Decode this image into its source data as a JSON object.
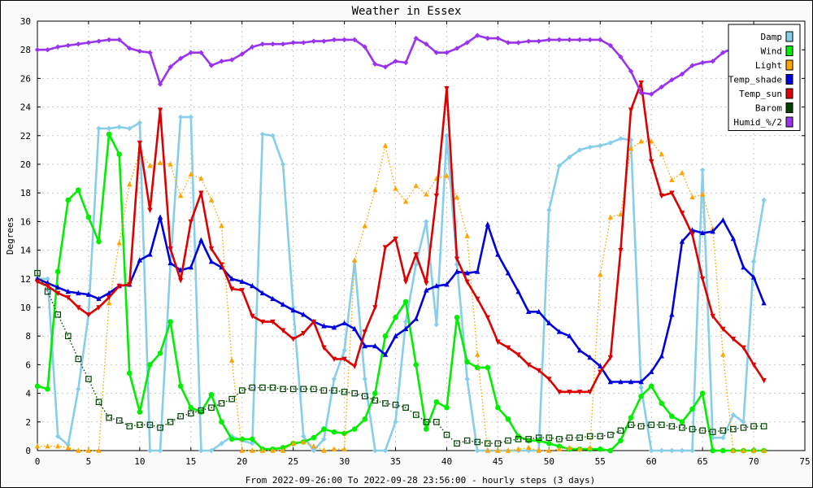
{
  "chart_data": {
    "type": "line",
    "title": "Weather in Essex",
    "xlabel": "From 2022-09-26:00 To 2022-09-28 23:56:00 - hourly steps (3 days)",
    "ylabel": "Degrees",
    "xlim": [
      0,
      75
    ],
    "ylim": [
      0,
      30
    ],
    "xticks": [
      0,
      5,
      10,
      15,
      20,
      25,
      30,
      35,
      40,
      45,
      50,
      55,
      60,
      65,
      70,
      75
    ],
    "yticks": [
      0,
      2,
      4,
      6,
      8,
      10,
      12,
      14,
      16,
      18,
      20,
      22,
      24,
      26,
      28,
      30
    ],
    "grid": true,
    "legend_position": "top-right",
    "series": [
      {
        "name": "Damp",
        "color": "#87ceeb",
        "marker": "diamond",
        "dotted": false,
        "values": [
          12,
          12,
          1,
          0.4,
          4.3,
          9.5,
          22.5,
          22.5,
          22.6,
          22.5,
          22.9,
          0,
          0,
          13,
          23.3,
          23.3,
          0,
          0,
          0.5,
          1,
          0.7,
          0.5,
          22.1,
          22,
          20,
          10,
          1,
          0,
          0.8,
          5,
          7,
          13.2,
          5,
          0,
          0,
          2,
          9,
          13,
          16,
          8.8,
          22,
          13,
          5,
          0,
          0,
          0,
          0,
          0,
          0,
          0,
          16.8,
          19.9,
          20.5,
          21,
          21.2,
          21.3,
          21.5,
          21.8,
          21.7,
          4.4,
          0,
          0,
          0,
          0,
          0,
          19.6,
          0.9,
          0.9,
          2.5,
          2,
          13.2,
          17.5
        ]
      },
      {
        "name": "Wind",
        "color": "#00ee00",
        "marker": "circle",
        "dotted": false,
        "values": [
          4.5,
          4.3,
          12.5,
          17.5,
          18.2,
          16.3,
          14.6,
          22.1,
          20.7,
          5.4,
          2.7,
          6,
          6.8,
          9,
          4.5,
          3,
          2.7,
          3.9,
          2,
          0.8,
          0.8,
          0.8,
          0.1,
          0.1,
          0.2,
          0.5,
          0.6,
          0.9,
          1.5,
          1.3,
          1.2,
          1.5,
          2.2,
          4,
          8,
          9.3,
          10.4,
          6,
          1.5,
          3.4,
          3,
          9.3,
          6.2,
          5.8,
          5.8,
          3,
          2.2,
          1,
          0.7,
          0.7,
          0.5,
          0.3,
          0.1,
          0.1,
          0.1,
          0.1,
          0,
          0.7,
          2.3,
          3.8,
          4.5,
          3.3,
          2.4,
          2,
          2.9,
          4,
          0,
          0,
          0,
          0,
          0,
          0
        ]
      },
      {
        "name": "Light",
        "color": "#ffa500",
        "marker": "triangle",
        "dotted": true,
        "values": [
          0.3,
          0.3,
          0.3,
          0.2,
          0,
          0,
          0,
          10.3,
          14.5,
          18.6,
          20.9,
          19.9,
          20.1,
          20,
          17.8,
          19.3,
          19,
          17.5,
          15.7,
          6.3,
          0,
          0,
          0,
          0,
          0,
          0.5,
          0.6,
          0.3,
          0,
          0.1,
          0.1,
          13.3,
          15.7,
          18.2,
          21.3,
          18.3,
          17.4,
          18.5,
          17.9,
          19,
          19.2,
          17.7,
          15,
          6.7,
          0,
          0,
          0,
          0.1,
          0.2,
          0,
          0,
          0.1,
          0.2,
          0.1,
          0.2,
          12.3,
          16.3,
          16.5,
          21.1,
          21.6,
          21.6,
          20.7,
          18.9,
          19.4,
          17.7,
          17.9,
          15.5,
          6.7,
          0,
          0,
          0,
          0
        ]
      },
      {
        "name": "Temp_shade",
        "color": "#0000dd",
        "marker": "triangle",
        "dotted": false,
        "values": [
          12,
          11.7,
          11.4,
          11.1,
          11,
          10.9,
          10.6,
          11,
          11.5,
          11.6,
          13.3,
          13.7,
          16.3,
          13.1,
          12.6,
          12.8,
          14.7,
          13.2,
          12.8,
          12,
          11.8,
          11.5,
          11,
          10.6,
          10.2,
          9.8,
          9.5,
          9,
          8.7,
          8.6,
          8.9,
          8.5,
          7.3,
          7.3,
          6.7,
          8,
          8.5,
          9.2,
          11.2,
          11.5,
          11.6,
          12.5,
          12.4,
          12.5,
          15.8,
          13.7,
          12.4,
          11.1,
          9.7,
          9.7,
          8.9,
          8.3,
          8,
          7,
          6.5,
          5.9,
          4.8,
          4.8,
          4.8,
          4.8,
          5.5,
          6.6,
          9.5,
          14.6,
          15.4,
          15.2,
          15.3,
          16.1,
          14.8,
          12.8,
          12.1,
          10.3
        ]
      },
      {
        "name": "Temp_sun",
        "color": "#dd0000",
        "marker": "triangle-down",
        "dotted": false,
        "values": [
          11.8,
          11.5,
          11,
          10.7,
          10,
          9.5,
          10,
          10.7,
          11.5,
          11.6,
          21.5,
          16.8,
          23.8,
          14.1,
          11.9,
          16,
          18,
          14.1,
          13,
          11.3,
          11.2,
          9.4,
          9,
          9,
          8.4,
          7.8,
          8.2,
          9,
          7.2,
          6.4,
          6.4,
          5.9,
          8.3,
          10,
          14.2,
          14.8,
          11.8,
          13.7,
          11.7,
          17.8,
          25.3,
          13.4,
          11.8,
          10.6,
          9.3,
          7.6,
          7.2,
          6.7,
          6,
          5.6,
          5,
          4.1,
          4.1,
          4.1,
          4.1,
          5.5,
          6.5,
          14,
          23.8,
          25.7,
          20.2,
          17.8,
          18,
          16.6,
          15.1,
          12,
          9.4,
          8.5,
          7.8,
          7.2,
          6,
          4.9
        ]
      },
      {
        "name": "Barom",
        "color": "#004400",
        "marker": "square",
        "dotted": true,
        "values": [
          12.4,
          11.1,
          9.5,
          8,
          6.4,
          5,
          3.4,
          2.3,
          2.1,
          1.7,
          1.8,
          1.8,
          1.6,
          2,
          2.4,
          2.6,
          2.8,
          3,
          3.3,
          3.6,
          4.2,
          4.4,
          4.4,
          4.4,
          4.3,
          4.3,
          4.3,
          4.3,
          4.2,
          4.2,
          4.1,
          4,
          3.8,
          3.5,
          3.3,
          3.2,
          3,
          2.5,
          2,
          2,
          1.1,
          0.5,
          0.7,
          0.6,
          0.5,
          0.5,
          0.7,
          0.8,
          0.8,
          0.9,
          0.9,
          0.8,
          0.9,
          0.9,
          1,
          1,
          1.1,
          1.4,
          1.8,
          1.7,
          1.8,
          1.8,
          1.7,
          1.6,
          1.5,
          1.4,
          1.3,
          1.4,
          1.5,
          1.6,
          1.7,
          1.7
        ]
      },
      {
        "name": "Humid_%/2",
        "color": "#9933ee",
        "marker": "diamond",
        "dotted": false,
        "values": [
          28,
          28,
          28.2,
          28.3,
          28.4,
          28.5,
          28.6,
          28.7,
          28.7,
          28.1,
          27.9,
          27.8,
          25.6,
          26.8,
          27.4,
          27.8,
          27.8,
          26.9,
          27.2,
          27.3,
          27.7,
          28.2,
          28.4,
          28.4,
          28.4,
          28.5,
          28.5,
          28.6,
          28.6,
          28.7,
          28.7,
          28.7,
          28.2,
          27,
          26.8,
          27.2,
          27.1,
          28.8,
          28.4,
          27.8,
          27.8,
          28.1,
          28.5,
          29,
          28.8,
          28.8,
          28.5,
          28.5,
          28.6,
          28.6,
          28.7,
          28.7,
          28.7,
          28.7,
          28.7,
          28.7,
          28.3,
          27.5,
          26.5,
          25,
          24.9,
          25.4,
          25.9,
          26.3,
          26.9,
          27.1,
          27.2,
          27.8,
          28.1,
          28.2,
          28.4,
          28.5
        ]
      }
    ]
  }
}
